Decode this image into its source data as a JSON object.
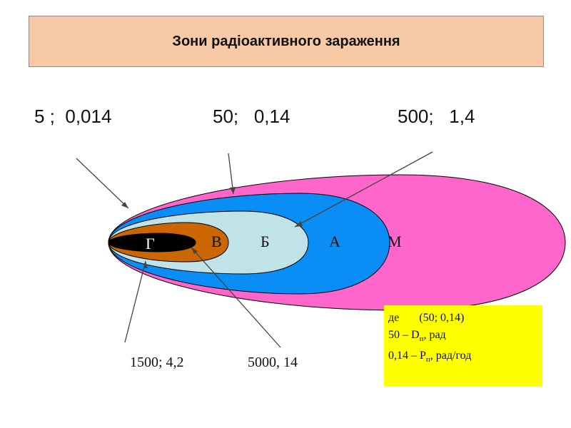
{
  "title": "Зони радіоактивного зараження",
  "top_labels": {
    "outer": "5 ;  0,014",
    "middle": "50;   0,14",
    "inner": "500;   1,4"
  },
  "bottom_labels": {
    "left": "1500; 4,2",
    "right": "5000, 14"
  },
  "zones": {
    "M": "М",
    "A": "А",
    "B": "Б",
    "V": "В",
    "G": "Г"
  },
  "note": {
    "line1_prefix": "де",
    "line1_value": "(50; 0,14)",
    "line2_prefix": "50 – D",
    "line2_sub": "п",
    "line2_suffix": ", рад",
    "line3_prefix": "0,14 – P",
    "line3_sub": "п",
    "line3_suffix": ", рад/год"
  },
  "colors": {
    "zone_M": "#ff66cc",
    "zone_A": "#0a8ef5",
    "zone_B": "#bfe3e6",
    "zone_V": "#cc6600",
    "zone_G": "#000000",
    "title_bg": "#f7c9a6",
    "note_bg": "#ffff00"
  }
}
